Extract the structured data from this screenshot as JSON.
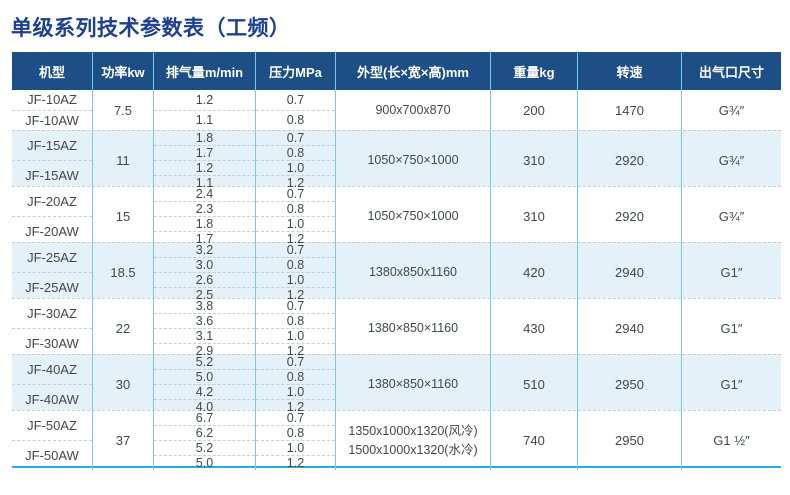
{
  "title": "单级系列技术参数表（工频）",
  "colors": {
    "header_bg": "#1d4e85",
    "title_text": "#1c3f8f",
    "column_line": "#74cbe9",
    "alt_row_bg": "#e4f1f9",
    "bottom_border": "#2ba9e0"
  },
  "table": {
    "headers": [
      "机型",
      "功率kw",
      "排气量m/min",
      "压力MPa",
      "外型(长×宽×高)mm",
      "重量kg",
      "转速",
      "出气口尺寸"
    ],
    "groups": [
      {
        "models": [
          "JF-10AZ",
          "JF-10AW"
        ],
        "power": "7.5",
        "disp": [
          "1.2",
          "1.1"
        ],
        "pres": [
          "0.7",
          "0.8"
        ],
        "dims": [
          "900x700x870"
        ],
        "weight": "200",
        "speed": "1470",
        "outlet": "G¾″"
      },
      {
        "models": [
          "JF-15AZ",
          "JF-15AW"
        ],
        "power": "11",
        "disp": [
          "1.8",
          "1.7",
          "1.2",
          "1.1"
        ],
        "pres": [
          "0.7",
          "0.8",
          "1.0",
          "1.2"
        ],
        "dims": [
          "1050×750×1000"
        ],
        "weight": "310",
        "speed": "2920",
        "outlet": "G¾″"
      },
      {
        "models": [
          "JF-20AZ",
          "JF-20AW"
        ],
        "power": "15",
        "disp": [
          "2.4",
          "2.3",
          "1.8",
          "1.7"
        ],
        "pres": [
          "0.7",
          "0.8",
          "1.0",
          "1.2"
        ],
        "dims": [
          "1050×750×1000"
        ],
        "weight": "310",
        "speed": "2920",
        "outlet": "G¾″"
      },
      {
        "models": [
          "JF-25AZ",
          "JF-25AW"
        ],
        "power": "18.5",
        "disp": [
          "3.2",
          "3.0",
          "2.6",
          "2.5"
        ],
        "pres": [
          "0.7",
          "0.8",
          "1.0",
          "1.2"
        ],
        "dims": [
          "1380x850x1160"
        ],
        "weight": "420",
        "speed": "2940",
        "outlet": "G1″"
      },
      {
        "models": [
          "JF-30AZ",
          "JF-30AW"
        ],
        "power": "22",
        "disp": [
          "3.8",
          "3.6",
          "3.1",
          "2.9"
        ],
        "pres": [
          "0.7",
          "0.8",
          "1.0",
          "1.2"
        ],
        "dims": [
          "1380×850×1160"
        ],
        "weight": "430",
        "speed": "2940",
        "outlet": "G1″"
      },
      {
        "models": [
          "JF-40AZ",
          "JF-40AW"
        ],
        "power": "30",
        "disp": [
          "5.2",
          "5.0",
          "4.2",
          "4.0"
        ],
        "pres": [
          "0.7",
          "0.8",
          "1.0",
          "1.2"
        ],
        "dims": [
          "1380×850×1160"
        ],
        "weight": "510",
        "speed": "2950",
        "outlet": "G1″"
      },
      {
        "models": [
          "JF-50AZ",
          "JF-50AW"
        ],
        "power": "37",
        "disp": [
          "6.7",
          "6.2",
          "5.2",
          "5.0"
        ],
        "pres": [
          "0.7",
          "0.8",
          "1.0",
          "1.2"
        ],
        "dims": [
          "1350x1000x1320(风冷)",
          "1500x1000x1320(水冷)"
        ],
        "weight": "740",
        "speed": "2950",
        "outlet": "G1 ½″"
      }
    ]
  }
}
